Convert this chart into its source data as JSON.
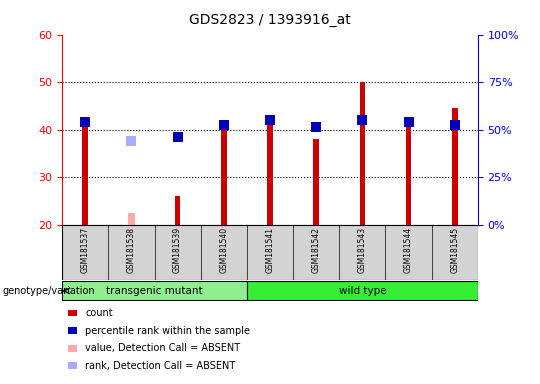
{
  "title": "GDS2823 / 1393916_at",
  "samples": [
    "GSM181537",
    "GSM181538",
    "GSM181539",
    "GSM181540",
    "GSM181541",
    "GSM181542",
    "GSM181543",
    "GSM181544",
    "GSM181545"
  ],
  "count_values": [
    41.5,
    null,
    26.0,
    40.5,
    42.5,
    38.0,
    50.0,
    42.0,
    44.5
  ],
  "rank_values": [
    41.5,
    null,
    38.5,
    41.0,
    42.0,
    40.5,
    42.0,
    41.5,
    41.0
  ],
  "absent_value": [
    null,
    22.5,
    null,
    null,
    null,
    null,
    null,
    null,
    null
  ],
  "absent_rank": [
    null,
    37.5,
    null,
    null,
    null,
    null,
    null,
    null,
    null
  ],
  "ymin": 20,
  "ymax": 60,
  "yticks": [
    20,
    30,
    40,
    50,
    60
  ],
  "right_ytick_positions": [
    20,
    30,
    40,
    50,
    60
  ],
  "right_ytick_labels": [
    "0%",
    "25%",
    "50%",
    "75%",
    "100%"
  ],
  "group1_label": "transgenic mutant",
  "group2_label": "wild type",
  "group1_indices": [
    0,
    1,
    2,
    3
  ],
  "group2_indices": [
    4,
    5,
    6,
    7,
    8
  ],
  "group1_color": "#90ee90",
  "group2_color": "#33ee33",
  "bar_color_red": "#cc0000",
  "bar_color_pink": "#ffaaaa",
  "square_color_blue": "#0000bb",
  "square_color_lightblue": "#aaaaff",
  "bar_width": 0.12,
  "square_size": 55,
  "legend_entries": [
    "count",
    "percentile rank within the sample",
    "value, Detection Call = ABSENT",
    "rank, Detection Call = ABSENT"
  ],
  "legend_colors": [
    "#cc0000",
    "#0000bb",
    "#ffaaaa",
    "#aaaaff"
  ]
}
